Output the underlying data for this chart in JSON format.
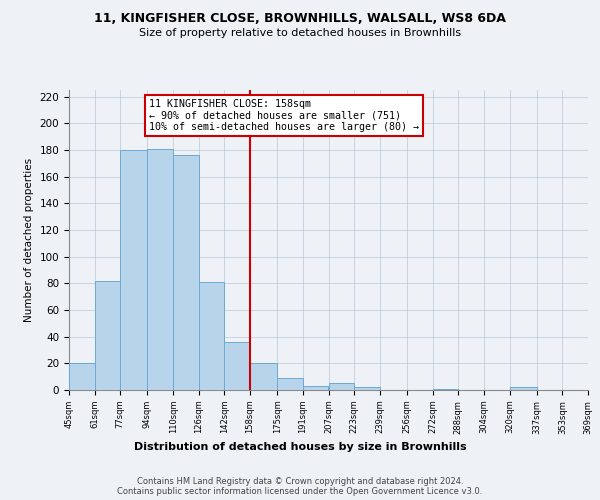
{
  "title_line1": "11, KINGFISHER CLOSE, BROWNHILLS, WALSALL, WS8 6DA",
  "title_line2": "Size of property relative to detached houses in Brownhills",
  "xlabel": "Distribution of detached houses by size in Brownhills",
  "ylabel": "Number of detached properties",
  "bin_edges": [
    45,
    61,
    77,
    94,
    110,
    126,
    142,
    158,
    175,
    191,
    207,
    223,
    239,
    256,
    272,
    288,
    304,
    320,
    337,
    353,
    369
  ],
  "bin_heights": [
    20,
    82,
    180,
    181,
    176,
    81,
    36,
    20,
    9,
    3,
    5,
    2,
    0,
    0,
    1,
    0,
    0,
    2,
    0,
    0
  ],
  "bar_color": "#b8d4ea",
  "bar_edge_color": "#6aaad4",
  "property_size": 158,
  "vline_color": "#cc0000",
  "annotation_text": "11 KINGFISHER CLOSE: 158sqm\n← 90% of detached houses are smaller (751)\n10% of semi-detached houses are larger (80) →",
  "annotation_box_color": "#ffffff",
  "annotation_box_edge": "#cc0000",
  "ylim": [
    0,
    225
  ],
  "yticks": [
    0,
    20,
    40,
    60,
    80,
    100,
    120,
    140,
    160,
    180,
    200,
    220
  ],
  "tick_labels": [
    "45sqm",
    "61sqm",
    "77sqm",
    "94sqm",
    "110sqm",
    "126sqm",
    "142sqm",
    "158sqm",
    "175sqm",
    "191sqm",
    "207sqm",
    "223sqm",
    "239sqm",
    "256sqm",
    "272sqm",
    "288sqm",
    "304sqm",
    "320sqm",
    "337sqm",
    "353sqm",
    "369sqm"
  ],
  "footer_line1": "Contains HM Land Registry data © Crown copyright and database right 2024.",
  "footer_line2": "Contains public sector information licensed under the Open Government Licence v3.0.",
  "background_color": "#eef2f7"
}
